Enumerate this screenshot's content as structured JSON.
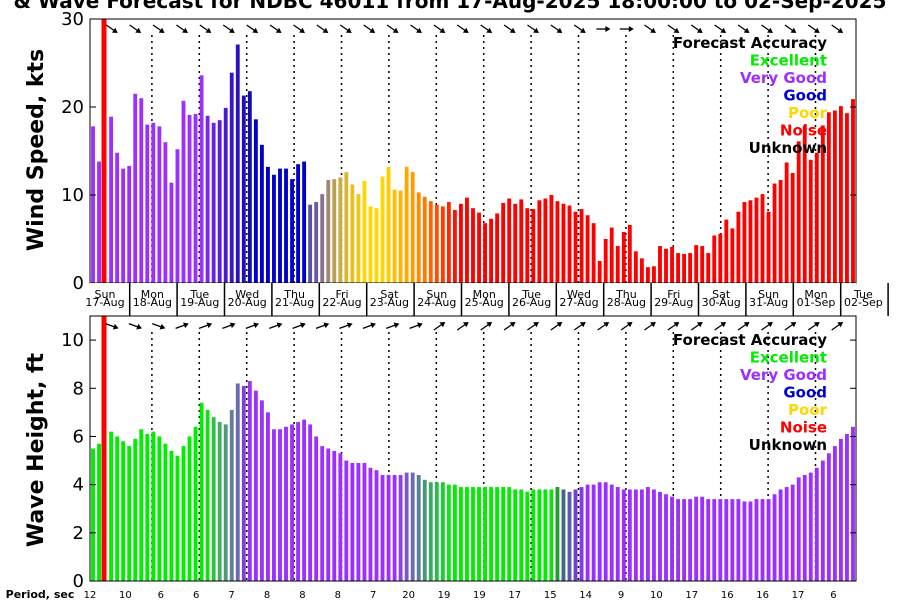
{
  "title": "& Wave Forecast for NDBC 46011 from 17-Aug-2025 18:00:00 to 02-Sep-2025",
  "chart_data": [
    {
      "type": "bar",
      "ylabel": "Wind Speed, kts",
      "ylim": [
        0,
        30
      ],
      "yticks": [
        "0",
        "10",
        "20",
        "30"
      ],
      "legend_title": "Forecast Accuracy",
      "legend": [
        {
          "label": "Excellent",
          "color": "#00ee00"
        },
        {
          "label": "Very Good",
          "color": "#9b30ff"
        },
        {
          "label": "Good",
          "color": "#0000cd"
        },
        {
          "label": "Poor",
          "color": "#ffd700"
        },
        {
          "label": "Noise",
          "color": "#ff0000"
        },
        {
          "label": "Unknown",
          "color": "#000000"
        }
      ],
      "values": [
        17.8,
        13.8,
        0,
        18.9,
        14.8,
        13.0,
        13.3,
        21.5,
        21.0,
        18.0,
        18.2,
        17.8,
        16.0,
        11.4,
        15.2,
        20.7,
        19.1,
        19.2,
        23.6,
        19.0,
        18.2,
        18.5,
        19.9,
        23.9,
        27.1,
        21.3,
        21.8,
        18.6,
        15.7,
        13.2,
        12.3,
        13.0,
        13.0,
        11.8,
        13.5,
        13.8,
        8.9,
        9.2,
        10.1,
        11.7,
        11.8,
        12.0,
        12.6,
        11.2,
        10.1,
        11.6,
        8.7,
        8.5,
        12.1,
        13.2,
        10.6,
        10.5,
        13.2,
        12.6,
        10.3,
        9.8,
        9.3,
        8.9,
        8.7,
        9.2,
        8.3,
        9.0,
        9.7,
        8.5,
        8.0,
        6.8,
        7.3,
        7.9,
        9.1,
        9.6,
        9.0,
        9.5,
        8.5,
        8.4,
        9.4,
        9.6,
        10.0,
        9.3,
        9.0,
        8.8,
        8.1,
        8.4,
        7.7,
        6.8,
        2.5,
        5.0,
        6.3,
        4.2,
        5.8,
        6.6,
        3.6,
        2.8,
        1.8,
        1.9,
        4.2,
        3.9,
        4.1,
        3.4,
        3.3,
        3.4,
        4.3,
        4.2,
        3.4,
        5.4,
        5.6,
        7.2,
        6.2,
        8.1,
        9.2,
        9.4,
        9.7,
        10.1,
        8.1,
        11.3,
        11.7,
        13.7,
        12.5,
        16.1,
        17.9,
        14.0,
        14.8,
        17.9,
        19.4,
        19.6,
        20.1,
        19.3,
        20.9
      ],
      "colors": [
        "#9b30ff",
        "#9b30ff",
        "#ff0000",
        "#9b30ff",
        "#9b30ff",
        "#9b30ff",
        "#9b30ff",
        "#9b30ff",
        "#9b30ff",
        "#9b30ff",
        "#9b30ff",
        "#9b30ff",
        "#9b30ff",
        "#9b30ff",
        "#9b30ff",
        "#9b30ff",
        "#9b30ff",
        "#9b30ff",
        "#9b30ff",
        "#7b27e6",
        "#6a23de",
        "#5a1fd6",
        "#4a1bcc",
        "#3a16c4",
        "#2a12bc",
        "#1e0fb6",
        "#120cb0",
        "#0000cd",
        "#0000cd",
        "#0000cd",
        "#0000cd",
        "#0000cd",
        "#0000cd",
        "#0000cd",
        "#0000cd",
        "#0000cd",
        "#5a50a8",
        "#6a5aa0",
        "#8a7090",
        "#a08a70",
        "#b8a050",
        "#c8ae40",
        "#d8b830",
        "#e6c020",
        "#f0c810",
        "#ffd700",
        "#ffd700",
        "#ffd700",
        "#ffd700",
        "#ffcc00",
        "#ffc000",
        "#ffb400",
        "#ffa800",
        "#ff9c00",
        "#ff8c00",
        "#ff7a00",
        "#ff6600",
        "#ff5000",
        "#ff3c00",
        "#ff2800",
        "#ff1400",
        "#ff0000",
        "#ff0000",
        "#ff0000",
        "#ff0000",
        "#ff0000",
        "#ff0000",
        "#ff0000",
        "#ff0000",
        "#ff0000",
        "#ff0000",
        "#ff0000",
        "#ff0000",
        "#ff0000",
        "#ff0000",
        "#ff0000",
        "#ff0000",
        "#ff0000",
        "#ff0000",
        "#ff0000",
        "#ff0000",
        "#ff0000",
        "#ff0000",
        "#ff0000",
        "#ff0000",
        "#ff0000",
        "#ff0000",
        "#ff0000",
        "#ff0000",
        "#ff0000",
        "#ff0000",
        "#ff0000",
        "#ff0000",
        "#ff0000",
        "#ff0000",
        "#ff0000",
        "#ff0000",
        "#ff0000",
        "#ff0000",
        "#ff0000",
        "#ff0000",
        "#ff0000",
        "#ff0000",
        "#ff0000",
        "#ff0000",
        "#ff0000",
        "#ff0000",
        "#ff0000",
        "#ff0000",
        "#ff0000",
        "#ff0000",
        "#ff0000",
        "#ff0000",
        "#ff0000",
        "#ff0000",
        "#ff0000",
        "#ff0000",
        "#ff0000",
        "#ff0000",
        "#ff0000",
        "#ff0000",
        "#ff0000",
        "#ff0000",
        "#ff0000",
        "#ff0000",
        "#ff0000",
        "#ff0000"
      ]
    },
    {
      "type": "bar",
      "ylabel": "Wave Height, ft",
      "ylim": [
        0,
        11
      ],
      "yticks": [
        "0",
        "2",
        "4",
        "6",
        "8",
        "10"
      ],
      "legend_title": "Forecast Accuracy",
      "legend": [
        {
          "label": "Excellent",
          "color": "#00ee00"
        },
        {
          "label": "Very Good",
          "color": "#9b30ff"
        },
        {
          "label": "Good",
          "color": "#0000cd"
        },
        {
          "label": "Poor",
          "color": "#ffd700"
        },
        {
          "label": "Noise",
          "color": "#ff0000"
        },
        {
          "label": "Unknown",
          "color": "#000000"
        }
      ],
      "values": [
        5.5,
        5.7,
        0,
        6.2,
        6.0,
        5.8,
        5.6,
        5.9,
        6.3,
        6.1,
        6.2,
        6.0,
        5.7,
        5.4,
        5.2,
        5.6,
        6.0,
        6.4,
        7.4,
        7.1,
        6.8,
        6.6,
        6.5,
        7.1,
        8.2,
        8.1,
        8.3,
        7.9,
        7.5,
        7.0,
        6.3,
        6.3,
        6.4,
        6.5,
        6.6,
        6.7,
        6.5,
        6.0,
        5.6,
        5.5,
        5.4,
        5.3,
        5.0,
        4.9,
        4.9,
        4.9,
        4.7,
        4.6,
        4.4,
        4.4,
        4.4,
        4.4,
        4.5,
        4.5,
        4.4,
        4.2,
        4.1,
        4.1,
        4.1,
        4.0,
        4.0,
        3.9,
        3.9,
        3.9,
        3.9,
        3.9,
        3.9,
        3.9,
        3.9,
        3.9,
        3.8,
        3.8,
        3.7,
        3.8,
        3.8,
        3.8,
        3.8,
        3.9,
        3.8,
        3.7,
        3.8,
        3.9,
        4.0,
        4.0,
        4.1,
        4.1,
        4.0,
        3.9,
        3.8,
        3.8,
        3.8,
        3.8,
        3.9,
        3.8,
        3.7,
        3.6,
        3.5,
        3.4,
        3.4,
        3.4,
        3.5,
        3.5,
        3.4,
        3.4,
        3.4,
        3.4,
        3.4,
        3.4,
        3.3,
        3.3,
        3.4,
        3.4,
        3.4,
        3.6,
        3.8,
        3.9,
        4.0,
        4.3,
        4.4,
        4.5,
        4.7,
        5.0,
        5.3,
        5.6,
        5.9,
        6.1,
        6.4
      ],
      "colors": [
        "#00ee00",
        "#00ee00",
        "#ff0000",
        "#00ee00",
        "#00ee00",
        "#00ee00",
        "#00ee00",
        "#00ee00",
        "#00ee00",
        "#00ee00",
        "#00ee00",
        "#00ee00",
        "#00ee00",
        "#00ee00",
        "#00ee00",
        "#00ee00",
        "#00ee00",
        "#00ee00",
        "#00ee00",
        "#10e010",
        "#30c040",
        "#40b060",
        "#509a7a",
        "#607f98",
        "#6a6ab0",
        "#8040d8",
        "#9b30ff",
        "#9b30ff",
        "#9b30ff",
        "#9b30ff",
        "#9b30ff",
        "#9b30ff",
        "#9b30ff",
        "#9b30ff",
        "#9b30ff",
        "#9b30ff",
        "#9b30ff",
        "#9b30ff",
        "#9b30ff",
        "#9b30ff",
        "#9b30ff",
        "#9b30ff",
        "#9b30ff",
        "#9b30ff",
        "#9b30ff",
        "#9b30ff",
        "#9b30ff",
        "#9b30ff",
        "#9b30ff",
        "#9b30ff",
        "#9b30ff",
        "#8a44e6",
        "#7a58cc",
        "#6a6cb2",
        "#5a8098",
        "#4a947e",
        "#3aa864",
        "#2abc4a",
        "#1ad030",
        "#0ae418",
        "#00ee00",
        "#00ee00",
        "#00ee00",
        "#00ee00",
        "#00ee00",
        "#00ee00",
        "#00ee00",
        "#00ee00",
        "#00ee00",
        "#00ee00",
        "#00ee00",
        "#00ee00",
        "#00ee00",
        "#00ee00",
        "#00ee00",
        "#00ee00",
        "#10e010",
        "#209c30",
        "#406a80",
        "#5a5ab0",
        "#7040d0",
        "#8638e8",
        "#9b30ff",
        "#9b30ff",
        "#9b30ff",
        "#9b30ff",
        "#9b30ff",
        "#9b30ff",
        "#9b30ff",
        "#9b30ff",
        "#9b30ff",
        "#9b30ff",
        "#9b30ff",
        "#9b30ff",
        "#9b30ff",
        "#9b30ff",
        "#9b30ff",
        "#9b30ff",
        "#9b30ff",
        "#9b30ff",
        "#9b30ff",
        "#9b30ff",
        "#9b30ff",
        "#9b30ff",
        "#9b30ff",
        "#9b30ff",
        "#9b30ff",
        "#9b30ff",
        "#9b30ff",
        "#9b30ff",
        "#9b30ff",
        "#9b30ff",
        "#9b30ff",
        "#9b30ff",
        "#9b30ff",
        "#9b30ff",
        "#9b30ff",
        "#9b30ff",
        "#9b30ff",
        "#9b30ff",
        "#9b30ff",
        "#9b30ff",
        "#9b30ff",
        "#9b30ff",
        "#9b30ff",
        "#9b30ff",
        "#9b30ff"
      ]
    }
  ],
  "x_axis": {
    "days": [
      {
        "dow": "Sun",
        "date": "17-Aug"
      },
      {
        "dow": "Mon",
        "date": "18-Aug"
      },
      {
        "dow": "Tue",
        "date": "19-Aug"
      },
      {
        "dow": "Wed",
        "date": "20-Aug"
      },
      {
        "dow": "Thu",
        "date": "21-Aug"
      },
      {
        "dow": "Fri",
        "date": "22-Aug"
      },
      {
        "dow": "Sat",
        "date": "23-Aug"
      },
      {
        "dow": "Sun",
        "date": "24-Aug"
      },
      {
        "dow": "Mon",
        "date": "25-Aug"
      },
      {
        "dow": "Tue",
        "date": "26-Aug"
      },
      {
        "dow": "Wed",
        "date": "27-Aug"
      },
      {
        "dow": "Thu",
        "date": "28-Aug"
      },
      {
        "dow": "Fri",
        "date": "29-Aug"
      },
      {
        "dow": "Sat",
        "date": "30-Aug"
      },
      {
        "dow": "Sun",
        "date": "31-Aug"
      },
      {
        "dow": "Mon",
        "date": "01-Sep"
      },
      {
        "dow": "Tue",
        "date": "02-Sep"
      }
    ],
    "period_label": "Period, sec",
    "periods": [
      "12",
      "10",
      "6",
      "6",
      "7",
      "8",
      "8",
      "8",
      "7",
      "20",
      "19",
      "19",
      "17",
      "15",
      "14",
      "9",
      "10",
      "17",
      "16",
      "16",
      "17",
      "6"
    ],
    "wind_direction_arrows": "arrow-glyphs",
    "wave_direction_arrows": "arrow-glyphs"
  },
  "now_marker_color": "#ff0000"
}
